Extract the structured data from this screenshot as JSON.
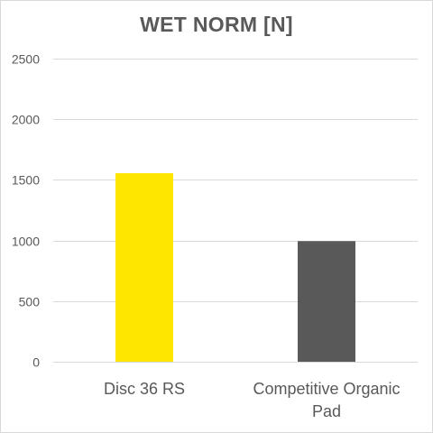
{
  "chart_data": {
    "type": "bar",
    "title": "WET NORM [N]",
    "categories": [
      [
        "Disc 36 RS"
      ],
      [
        "Competitive Organic",
        "Pad"
      ]
    ],
    "values": [
      1555,
      995
    ],
    "bar_colors": [
      "#FFE600",
      "#595959"
    ],
    "ylim": [
      0,
      2500
    ],
    "yticks": [
      0,
      500,
      1000,
      1500,
      2000,
      2500
    ],
    "grid": true,
    "legend": "none",
    "xlabel": "",
    "ylabel": ""
  }
}
